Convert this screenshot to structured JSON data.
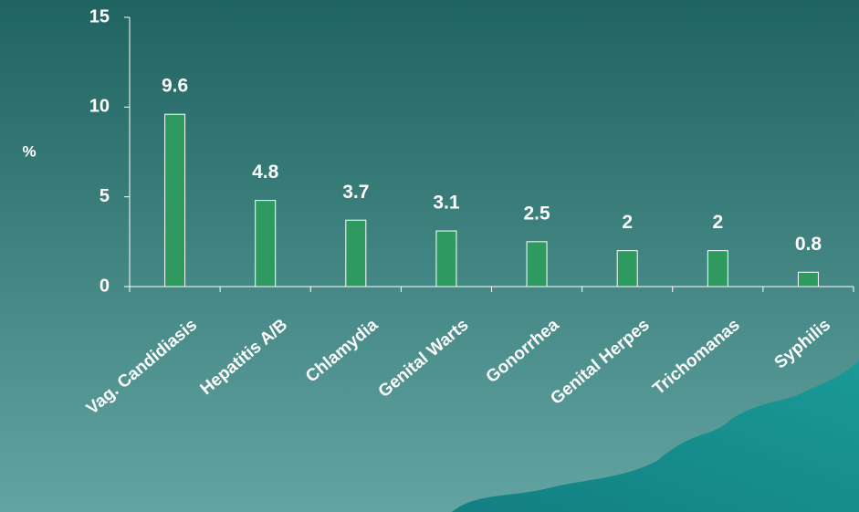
{
  "chart_data": {
    "type": "bar",
    "y_label": "%",
    "categories": [
      "Vag. Candidiasis",
      "Hepatitis A/B",
      "Chlamydia",
      "Genital Warts",
      "Gonorrhea",
      "Genital Herpes",
      "Trichomanas",
      "Syphilis"
    ],
    "values": [
      9.6,
      4.8,
      3.7,
      3.1,
      2.5,
      2,
      2,
      0.8
    ],
    "color": "#2f9a5f",
    "ylim": [
      0,
      15
    ],
    "yticks": [
      0,
      5,
      10,
      15
    ]
  }
}
